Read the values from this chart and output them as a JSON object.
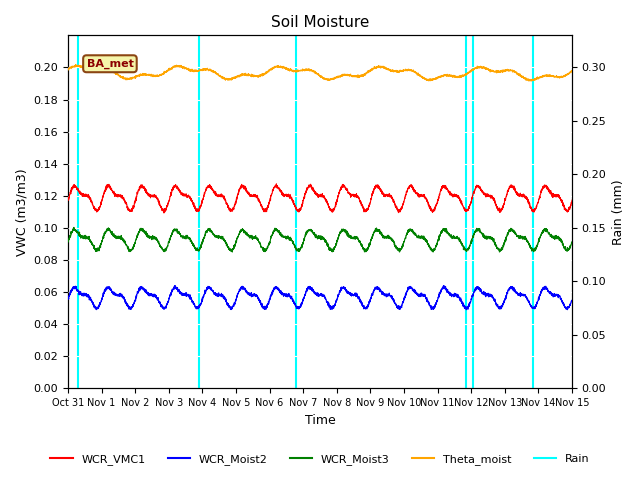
{
  "title": "Soil Moisture",
  "xlabel": "Time",
  "ylabel_left": "VWC (m3/m3)",
  "ylabel_right": "Rain (mm)",
  "xlim_days": [
    0,
    15
  ],
  "ylim_left": [
    0.0,
    0.22
  ],
  "ylim_right": [
    0.0,
    0.33
  ],
  "yticks_left": [
    0.0,
    0.02,
    0.04,
    0.06,
    0.08,
    0.1,
    0.12,
    0.14,
    0.16,
    0.18,
    0.2
  ],
  "yticks_right": [
    0.0,
    0.05,
    0.1,
    0.15,
    0.2,
    0.25,
    0.3
  ],
  "xtick_labels": [
    "Oct 31",
    "Nov 1",
    "Nov 2",
    "Nov 3",
    "Nov 4",
    "Nov 5",
    "Nov 6",
    "Nov 7",
    "Nov 8",
    "Nov 9",
    "Nov 10",
    "Nov 11",
    "Nov 12",
    "Nov 13",
    "Nov 14",
    "Nov 15"
  ],
  "annotation_label": "BA_met",
  "bg_color": "#e8e8e8",
  "vmc1_base": 0.119,
  "vmc1_amp": 0.006,
  "moist2_base": 0.057,
  "moist2_amp": 0.005,
  "moist3_base": 0.093,
  "moist3_amp": 0.005,
  "theta_base": 0.197,
  "theta_amp": 0.003,
  "rain_events": [
    0.3,
    3.9,
    6.8,
    11.85,
    12.05,
    13.85
  ],
  "legend_entries": [
    "WCR_VMC1",
    "WCR_Moist2",
    "WCR_Moist3",
    "Theta_moist",
    "Rain"
  ],
  "legend_colors": [
    "red",
    "blue",
    "green",
    "orange",
    "cyan"
  ]
}
